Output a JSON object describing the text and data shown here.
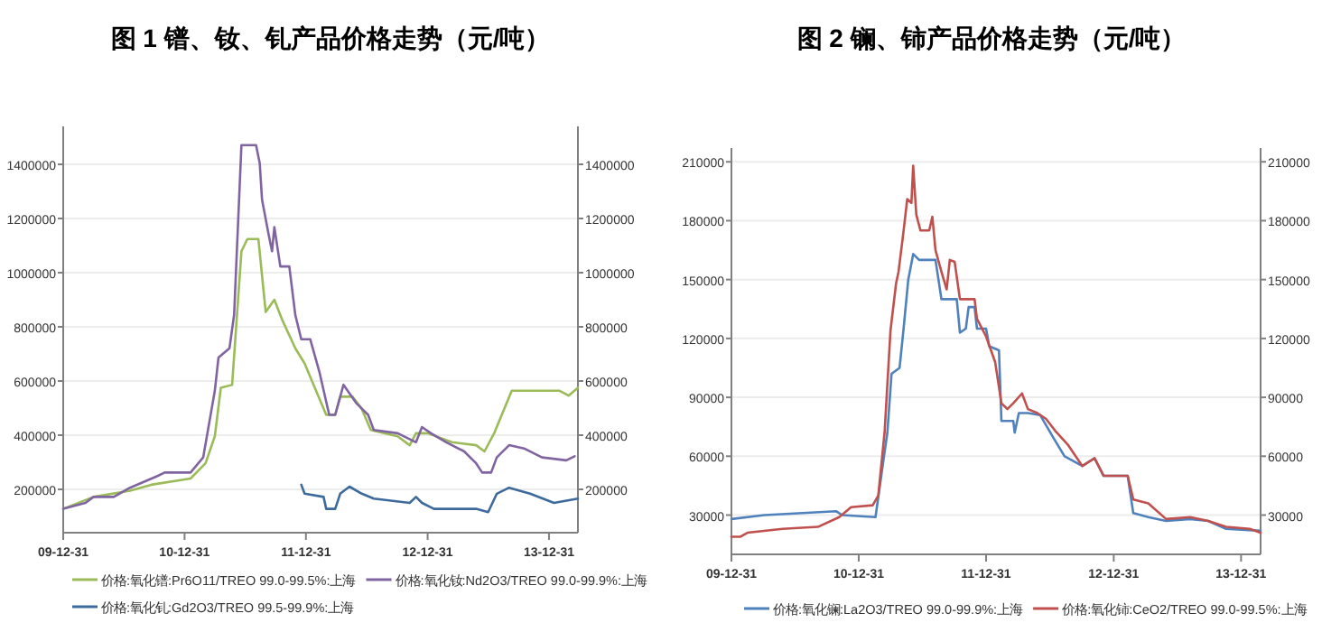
{
  "chart_data": [
    {
      "type": "line",
      "title": "图 1 镨、钕、钆产品价格走势（元/吨）",
      "xlim": [
        "2009-12-31",
        "2014-03-28"
      ],
      "xticks": [
        {
          "value": "2009-12-31",
          "label": "09-12-31"
        },
        {
          "value": "2010-12-31",
          "label": "10-12-31"
        },
        {
          "value": "2011-12-31",
          "label": "11-12-31"
        },
        {
          "value": "2012-12-31",
          "label": "12-12-31"
        },
        {
          "value": "2013-12-31",
          "label": "13-12-31"
        }
      ],
      "ylim": [
        40000,
        1540000
      ],
      "yticks": [
        200000,
        400000,
        600000,
        800000,
        1000000,
        1200000,
        1400000
      ],
      "y2lim": [
        40000,
        1540000
      ],
      "y2ticks": [
        200000,
        400000,
        600000,
        800000,
        1000000,
        1200000,
        1400000
      ],
      "grid": "y",
      "legend": "bottom",
      "marker": "none",
      "line_style": "solid",
      "series": [
        {
          "name": "价格:氧化镨:Pr6O11/TREO 99.0-99.5%:上海",
          "color": "#9bbb59",
          "x": [
            "2009-12-31",
            "2010-04-01",
            "2010-07-20",
            "2010-09-22",
            "2011-01-18",
            "2011-03-04",
            "2011-04-01",
            "2011-04-19",
            "2011-05-23",
            "2011-06-20",
            "2011-07-08",
            "2011-08-10",
            "2011-09-01",
            "2011-09-27",
            "2011-10-22",
            "2011-11-29",
            "2011-12-27",
            "2012-01-23",
            "2012-03-01",
            "2012-03-28",
            "2012-04-12",
            "2012-05-19",
            "2012-06-16",
            "2012-07-13",
            "2012-10-02",
            "2012-11-07",
            "2012-11-26",
            "2012-12-31",
            "2013-03-14",
            "2013-05-26",
            "2013-06-20",
            "2013-07-19",
            "2013-09-10",
            "2014-02-01",
            "2014-02-28",
            "2014-03-28"
          ],
          "values": [
            128000,
            172000,
            195000,
            217000,
            240000,
            296000,
            396000,
            575000,
            586000,
            1079000,
            1124000,
            1124000,
            855000,
            900000,
            822000,
            721000,
            665000,
            586000,
            475000,
            475000,
            542000,
            542000,
            497000,
            419000,
            396000,
            363000,
            407000,
            407000,
            374000,
            363000,
            340000,
            407000,
            564000,
            564000,
            546000,
            575000
          ]
        },
        {
          "name": "价格:氧化钕:Nd2O3/TREO 99.0-99.9%:上海",
          "color": "#8064a2",
          "x": [
            "2009-12-31",
            "2010-03-08",
            "2010-04-01",
            "2010-06-01",
            "2010-07-20",
            "2010-10-12",
            "2010-11-01",
            "2011-01-18",
            "2011-02-25",
            "2011-04-01",
            "2011-04-12",
            "2011-05-15",
            "2011-05-29",
            "2011-06-20",
            "2011-08-03",
            "2011-08-14",
            "2011-08-21",
            "2011-09-09",
            "2011-09-20",
            "2011-09-27",
            "2011-10-15",
            "2011-11-11",
            "2011-11-29",
            "2011-12-17",
            "2012-01-13",
            "2012-02-10",
            "2012-03-10",
            "2012-03-28",
            "2012-04-22",
            "2012-05-30",
            "2012-07-05",
            "2012-07-22",
            "2012-10-02",
            "2012-11-26",
            "2012-12-14",
            "2013-01-10",
            "2013-02-25",
            "2013-04-20",
            "2013-05-26",
            "2013-06-13",
            "2013-07-10",
            "2013-07-27",
            "2013-09-02",
            "2013-10-17",
            "2013-12-10",
            "2014-02-21",
            "2014-03-18"
          ],
          "values": [
            128000,
            150000,
            172000,
            172000,
            206000,
            250000,
            262000,
            262000,
            318000,
            564000,
            687000,
            721000,
            844000,
            1471000,
            1471000,
            1404000,
            1269000,
            1146000,
            1079000,
            1168000,
            1023000,
            1023000,
            844000,
            754000,
            754000,
            631000,
            475000,
            475000,
            586000,
            519000,
            475000,
            419000,
            407000,
            374000,
            430000,
            407000,
            374000,
            340000,
            296000,
            262000,
            262000,
            318000,
            363000,
            351000,
            318000,
            307000,
            322000
          ]
        },
        {
          "name": "价格:氧化钆:Gd2O3/TREO 99.5-99.9%:上海",
          "color": "#3d6a9c",
          "x": [
            "2011-12-17",
            "2011-12-27",
            "2012-02-22",
            "2012-03-01",
            "2012-03-28",
            "2012-04-12",
            "2012-05-10",
            "2012-06-16",
            "2012-07-22",
            "2012-11-07",
            "2012-11-26",
            "2012-12-14",
            "2013-01-19",
            "2013-05-26",
            "2013-07-01",
            "2013-07-27",
            "2013-09-02",
            "2013-11-04",
            "2014-01-15",
            "2014-03-28"
          ],
          "values": [
            217000,
            184000,
            172000,
            128000,
            128000,
            184000,
            210000,
            184000,
            166000,
            150000,
            172000,
            150000,
            128000,
            128000,
            116000,
            184000,
            206000,
            184000,
            150000,
            166000
          ]
        }
      ]
    },
    {
      "type": "line",
      "title": "图 2 镧、铈产品价格走势（元/吨）",
      "xlim": [
        "2009-12-31",
        "2014-02-25"
      ],
      "xticks": [
        {
          "value": "2009-12-31",
          "label": "09-12-31"
        },
        {
          "value": "2010-12-31",
          "label": "10-12-31"
        },
        {
          "value": "2011-12-31",
          "label": "11-12-31"
        },
        {
          "value": "2012-12-31",
          "label": "12-12-31"
        },
        {
          "value": "2013-12-31",
          "label": "13-12-31"
        }
      ],
      "ylim": [
        10000,
        217000
      ],
      "yticks": [
        30000,
        60000,
        90000,
        120000,
        150000,
        180000,
        210000
      ],
      "y2lim": [
        10000,
        217000
      ],
      "y2ticks": [
        30000,
        60000,
        90000,
        120000,
        150000,
        180000,
        210000
      ],
      "grid": "y",
      "legend": "bottom",
      "marker": "none",
      "line_style": "solid",
      "series": [
        {
          "name": "价格:氧化镧:La2O3/TREO 99.0-99.9%:上海",
          "color": "#4f81bd",
          "x": [
            "2009-12-31",
            "2010-04-05",
            "2010-10-27",
            "2010-11-13",
            "2011-02-17",
            "2011-03-07",
            "2011-03-23",
            "2011-04-04",
            "2011-04-27",
            "2011-05-08",
            "2011-05-22",
            "2011-06-05",
            "2011-06-22",
            "2011-08-08",
            "2011-08-25",
            "2011-10-08",
            "2011-10-17",
            "2011-11-03",
            "2011-11-11",
            "2011-11-28",
            "2011-12-05",
            "2011-12-31",
            "2012-01-09",
            "2012-02-06",
            "2012-02-13",
            "2012-03-18",
            "2012-03-22",
            "2012-04-03",
            "2012-04-29",
            "2012-06-03",
            "2012-07-09",
            "2012-08-12",
            "2012-10-02",
            "2012-11-06",
            "2012-12-02",
            "2013-02-09",
            "2013-02-25",
            "2013-04-09",
            "2013-05-30",
            "2013-08-07",
            "2013-09-28",
            "2013-11-18",
            "2014-02-25"
          ],
          "values": [
            28000,
            30000,
            32000,
            30000,
            29000,
            52000,
            72000,
            102000,
            105000,
            124000,
            150000,
            163000,
            160000,
            160000,
            140000,
            140000,
            123000,
            125000,
            136000,
            136000,
            125000,
            125000,
            116000,
            114000,
            78000,
            78000,
            72000,
            82000,
            82000,
            81000,
            70000,
            60000,
            55000,
            59000,
            50000,
            50000,
            31000,
            29000,
            27000,
            28000,
            27000,
            23000,
            22000
          ]
        },
        {
          "name": "价格:氧化铈:CeO2/TREO 99.0-99.5%:上海",
          "color": "#c0504d",
          "x": [
            "2009-12-31",
            "2010-01-26",
            "2010-02-15",
            "2010-05-27",
            "2010-09-05",
            "2010-11-05",
            "2010-12-09",
            "2011-02-09",
            "2011-02-25",
            "2011-03-15",
            "2011-04-01",
            "2011-04-17",
            "2011-04-24",
            "2011-05-08",
            "2011-05-19",
            "2011-05-31",
            "2011-06-05",
            "2011-06-14",
            "2011-06-26",
            "2011-07-21",
            "2011-07-30",
            "2011-08-08",
            "2011-08-25",
            "2011-09-09",
            "2011-09-18",
            "2011-10-02",
            "2011-10-17",
            "2011-11-28",
            "2011-12-05",
            "2011-12-31",
            "2012-01-26",
            "2012-02-13",
            "2012-03-01",
            "2012-03-18",
            "2012-04-12",
            "2012-04-29",
            "2012-05-26",
            "2012-06-20",
            "2012-07-16",
            "2012-08-21",
            "2012-10-02",
            "2012-11-06",
            "2012-12-02",
            "2013-02-09",
            "2013-02-25",
            "2013-04-09",
            "2013-05-30",
            "2013-08-07",
            "2013-09-28",
            "2013-11-18",
            "2014-01-25",
            "2014-02-25"
          ],
          "values": [
            19000,
            19000,
            21000,
            23000,
            24000,
            29000,
            34000,
            35000,
            40000,
            72000,
            124000,
            148000,
            154000,
            174000,
            191000,
            189000,
            208000,
            183000,
            175000,
            175000,
            182000,
            165000,
            154000,
            145000,
            160000,
            159000,
            140000,
            140000,
            130000,
            121000,
            108000,
            87000,
            84000,
            87000,
            92000,
            84000,
            82000,
            79000,
            73000,
            66000,
            55000,
            59000,
            50000,
            50000,
            38000,
            36000,
            28000,
            29000,
            27000,
            24000,
            23000,
            21000
          ]
        }
      ]
    }
  ]
}
